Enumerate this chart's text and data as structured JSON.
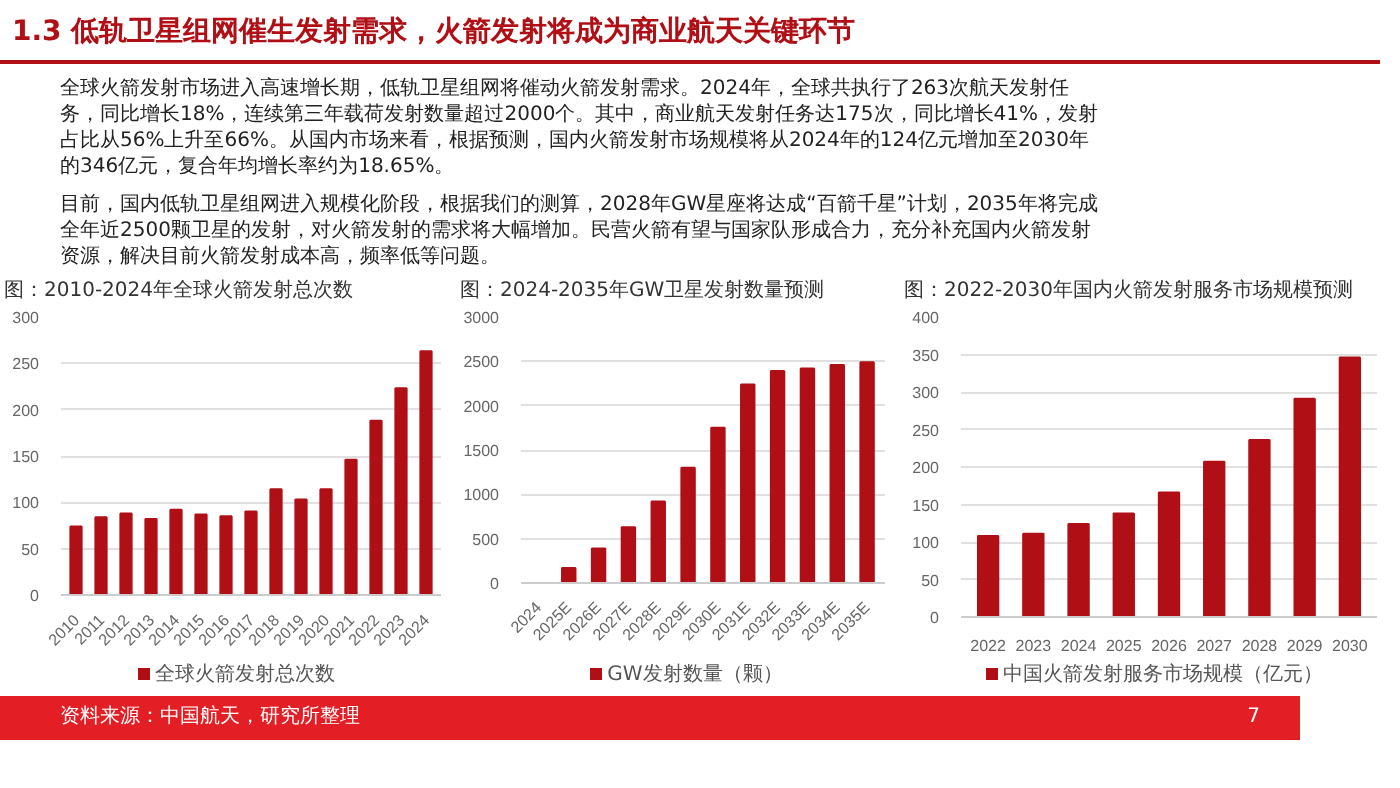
{
  "chart_data": [
    {
      "type": "other",
      "title": "1.3 低轨卫星组网催生发射需求，火箭发射将成为商业航天关键环节",
      "annotations": [
        "全球火箭发射市场进入高速增长期，低轨卫星组网将催动火箭发射需求。2024年，全球共执行了263次航天发射任务，同比增长18%，连续第三年载荷发射数量超过2000个。其中，商业航天发射任务达175次，同比增长41%，发射占比从56%上升至66%。从国内市场来看，根据预测，国内火箭发射市场规模将从2024年的124亿元增加至2030年的346亿元，复合年均增长率约为18.65%。",
        "目前，国内低轨卫星组网进入规模化阶段，根据我们的测算，2028年GW星座将达成“百箭千星”计划，2035年将完成全年近2500颗卫星的发射，对火箭发射的需求将大幅增加。民营火箭有望与国家队形成合力，充分补充国内火箭发射资源，解决目前火箭发射成本高，频率低等问题。"
      ]
    },
    {
      "type": "bar",
      "title": "图：2010-2024年全球火箭发射总次数",
      "categories": [
        "2010",
        "2011",
        "2012",
        "2013",
        "2014",
        "2015",
        "2016",
        "2017",
        "2018",
        "2019",
        "2020",
        "2021",
        "2022",
        "2023",
        "2024"
      ],
      "series": [
        {
          "name": "全球火箭发射总次数",
          "color": "#b00f16",
          "values": [
            74,
            84,
            88,
            82,
            92,
            87,
            85,
            90,
            114,
            103,
            114,
            146,
            188,
            223,
            263
          ]
        }
      ],
      "ylim": [
        0,
        300
      ],
      "yticks": [
        0,
        50,
        100,
        150,
        200,
        250,
        300
      ],
      "grid": "y",
      "legend": "bottom"
    },
    {
      "type": "bar",
      "title": "图：2024-2035年GW卫星发射数量预测",
      "categories": [
        "2024",
        "2025E",
        "2026E",
        "2027E",
        "2028E",
        "2029E",
        "2030E",
        "2031E",
        "2032E",
        "2033E",
        "2034E",
        "2035E"
      ],
      "series": [
        {
          "name": "GW发射数量（颗）",
          "color": "#b00f16",
          "values": [
            0,
            170,
            390,
            630,
            920,
            1300,
            1750,
            2240,
            2390,
            2420,
            2460,
            2490
          ]
        }
      ],
      "ylim": [
        0,
        3000
      ],
      "yticks": [
        0,
        500,
        1000,
        1500,
        2000,
        2500,
        3000
      ],
      "grid": "y",
      "legend": "bottom"
    },
    {
      "type": "bar",
      "title": "图：2022-2030年国内火箭发射服务市场规模预测",
      "categories": [
        "2022",
        "2023",
        "2024",
        "2025",
        "2026",
        "2027",
        "2028",
        "2029",
        "2030"
      ],
      "series": [
        {
          "name": "中国火箭发射服务市场规模（亿元）",
          "color": "#b00f16",
          "values": [
            108,
            111,
            124,
            138,
            166,
            207,
            236,
            291,
            346
          ]
        }
      ],
      "ylim": [
        0,
        400
      ],
      "yticks": [
        0,
        50,
        100,
        150,
        200,
        250,
        300,
        350,
        400
      ],
      "grid": "y",
      "legend": "bottom"
    },
    {
      "type": "other",
      "annotations": [
        "资料来源：中国航天，研究所整理",
        "7"
      ]
    }
  ]
}
